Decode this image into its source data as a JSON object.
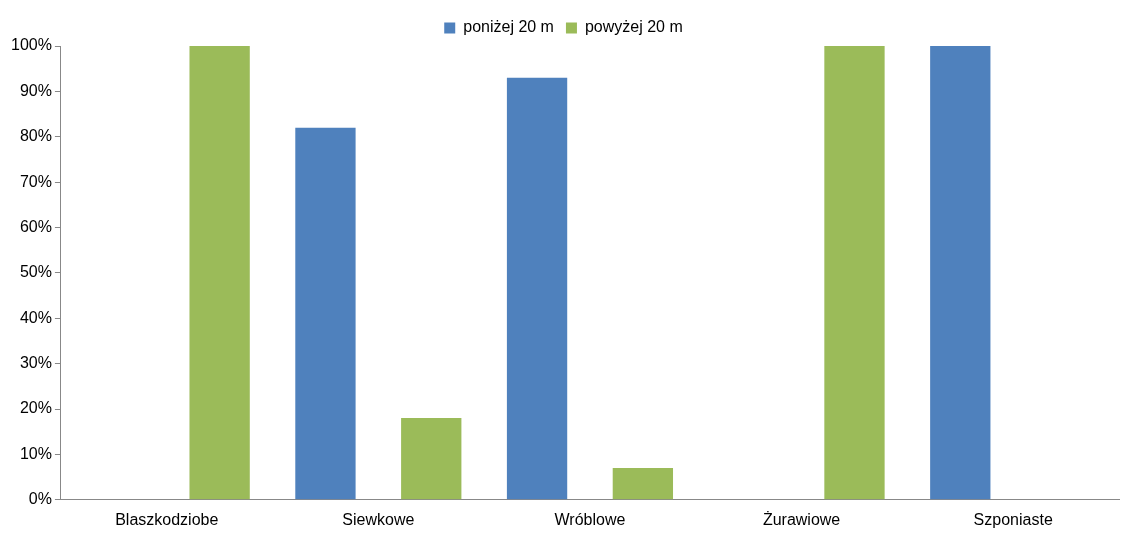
{
  "chart_data": {
    "type": "bar",
    "categories": [
      "Blaszkodziobe",
      "Siewkowe",
      "Wróblowe",
      "Żurawiowe",
      "Szponiaste"
    ],
    "series": [
      {
        "name": "poniżej 20 m",
        "color": "#4f81bd",
        "values": [
          0,
          82,
          93,
          0,
          100
        ]
      },
      {
        "name": "powyżej 20 m",
        "color": "#9bbb59",
        "values": [
          100,
          18,
          7,
          100,
          0
        ]
      }
    ],
    "ylim": [
      0,
      100
    ],
    "yticks": [
      {
        "value": 0,
        "label": "0%"
      },
      {
        "value": 10,
        "label": "10%"
      },
      {
        "value": 20,
        "label": "20%"
      },
      {
        "value": 30,
        "label": "30%"
      },
      {
        "value": 40,
        "label": "40%"
      },
      {
        "value": 50,
        "label": "50%"
      },
      {
        "value": 60,
        "label": "60%"
      },
      {
        "value": 70,
        "label": "70%"
      },
      {
        "value": 80,
        "label": "80%"
      },
      {
        "value": 90,
        "label": "90%"
      },
      {
        "value": 100,
        "label": "100%"
      }
    ],
    "grid": false,
    "legend": "top"
  }
}
